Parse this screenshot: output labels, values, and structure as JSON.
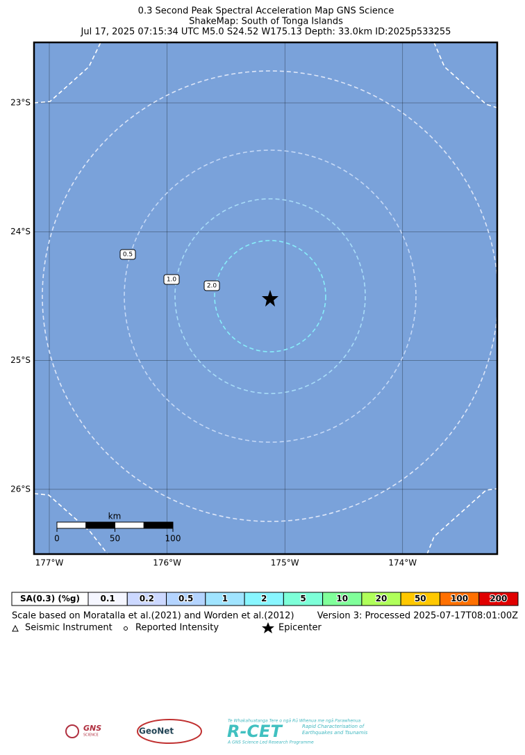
{
  "header": {
    "title": "0.3 Second Peak Spectral Acceleration Map GNS Science",
    "subtitle": "ShakeMap: South of Tonga Islands",
    "info": "Jul 17, 2025 07:15:34 UTC M5.0 S24.52 W175.13 Depth: 33.0km ID:2025p533255"
  },
  "map": {
    "lat_labels": [
      "23°S",
      "24°S",
      "25°S",
      "26°S"
    ],
    "lon_labels": [
      "177°W",
      "176°W",
      "175°W",
      "174°W"
    ],
    "contour_labels": [
      "0.5",
      "1.0",
      "2.0"
    ],
    "scale_bar": {
      "unit": "km",
      "ticks": [
        "0",
        "50",
        "100"
      ]
    }
  },
  "legend": {
    "title": "SA(0.3) (%g)",
    "bins": [
      {
        "label": "0.1",
        "color": "#f5f6ff"
      },
      {
        "label": "0.2",
        "color": "#ccd8ff"
      },
      {
        "label": "0.5",
        "color": "#b4d4ff"
      },
      {
        "label": "1",
        "color": "#a0e4ff"
      },
      {
        "label": "2",
        "color": "#88f6ff"
      },
      {
        "label": "5",
        "color": "#7dffd8"
      },
      {
        "label": "10",
        "color": "#80ff9a"
      },
      {
        "label": "20",
        "color": "#b0ff5a"
      },
      {
        "label": "50",
        "color": "#ffc800"
      },
      {
        "label": "100",
        "color": "#ff7000"
      },
      {
        "label": "200",
        "color": "#e00000"
      }
    ]
  },
  "footer": {
    "scale_note": "Scale based on Moratalla et al.(2021) and Worden et al.(2012)",
    "version": "Version 3: Processed 2025-07-17T08:01:00Z",
    "symbols": [
      "Seismic Instrument",
      "Reported Intensity",
      "Epicenter"
    ]
  },
  "logos": {
    "gns": "GNS",
    "gns_sub": "SCIENCE",
    "geonet": "GeoNet",
    "rcet": "R-CET",
    "rcet_top": "Te Whakahuatanga Tere o ngā Rū Whenua me ngā Parawhenua",
    "rcet_side": "Rapid Characterisation of Earthquakes and Tsunamis",
    "rcet_bottom": "A GNS Science Led Research Programme"
  }
}
